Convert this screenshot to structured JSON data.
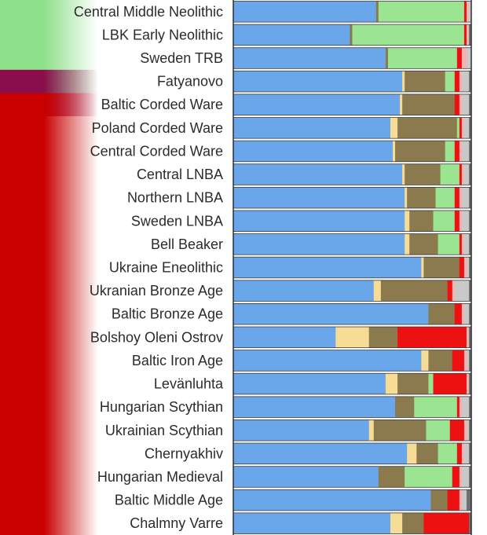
{
  "chart_data": {
    "type": "bar",
    "orientation": "horizontal",
    "stacked": true,
    "normalized": true,
    "title": "",
    "xlabel": "",
    "ylabel": "",
    "xlim": [
      0,
      1
    ],
    "grid": false,
    "legend": "none",
    "component_colors": [
      "#6aa6ea",
      "#f7dc96",
      "#8b7a4d",
      "#9be592",
      "#ee1111",
      "#f7b1b1",
      "#c9c9c9",
      "#707070"
    ],
    "groups": [
      {
        "name": "",
        "color": "#8ee08a",
        "start": 0,
        "end": 3
      },
      {
        "name": "",
        "color": "#8a0e4c",
        "start": 3,
        "end": 4
      },
      {
        "name": "",
        "color": "#c80000",
        "start": 4,
        "end": 22
      }
    ],
    "categories": [
      "Central Middle Neolithic",
      "LBK Early Neolithic",
      "Sweden TRB",
      "Fatyanovo",
      "Baltic Corded Ware",
      "Poland Corded Ware",
      "Central Corded Ware",
      "Central LNBA",
      "Northern LNBA",
      "Sweden LNBA",
      "Bell Beaker",
      "Ukraine Eneolithic",
      "Ukranian Bronze Age",
      "Baltic Bronze Age",
      "Bolshoy Oleni Ostrov",
      "Baltic Iron Age",
      "Levänluhta",
      "Hungarian Scythian",
      "Ukrainian Scythian",
      "Chernyakhiv",
      "Hungarian Medieval",
      "Baltic Middle Age",
      "Chalmny Varre"
    ],
    "values": [
      [
        0.6,
        0.0,
        0.01,
        0.36,
        0.01,
        0.01,
        0.01,
        0.0
      ],
      [
        0.49,
        0.0,
        0.01,
        0.47,
        0.01,
        0.01,
        0.0,
        0.01
      ],
      [
        0.64,
        0.0,
        0.01,
        0.29,
        0.02,
        0.02,
        0.02,
        0.0
      ],
      [
        0.71,
        0.01,
        0.17,
        0.04,
        0.02,
        0.01,
        0.03,
        0.01
      ],
      [
        0.7,
        0.01,
        0.22,
        0.0,
        0.02,
        0.01,
        0.03,
        0.01
      ],
      [
        0.66,
        0.03,
        0.25,
        0.01,
        0.01,
        0.01,
        0.02,
        0.01
      ],
      [
        0.67,
        0.01,
        0.21,
        0.04,
        0.02,
        0.01,
        0.03,
        0.01
      ],
      [
        0.71,
        0.01,
        0.15,
        0.08,
        0.01,
        0.01,
        0.02,
        0.01
      ],
      [
        0.72,
        0.01,
        0.12,
        0.08,
        0.02,
        0.01,
        0.03,
        0.01
      ],
      [
        0.72,
        0.02,
        0.1,
        0.09,
        0.02,
        0.01,
        0.03,
        0.01
      ],
      [
        0.72,
        0.02,
        0.12,
        0.09,
        0.01,
        0.01,
        0.02,
        0.01
      ],
      [
        0.79,
        0.01,
        0.15,
        0.0,
        0.02,
        0.01,
        0.01,
        0.01
      ],
      [
        0.59,
        0.03,
        0.28,
        0.0,
        0.02,
        0.01,
        0.06,
        0.01
      ],
      [
        0.82,
        0.0,
        0.11,
        0.0,
        0.03,
        0.01,
        0.02,
        0.01
      ],
      [
        0.43,
        0.14,
        0.12,
        0.0,
        0.29,
        0.01,
        0.0,
        0.01
      ],
      [
        0.79,
        0.03,
        0.1,
        0.0,
        0.05,
        0.01,
        0.01,
        0.01
      ],
      [
        0.64,
        0.05,
        0.13,
        0.02,
        0.14,
        0.01,
        0.0,
        0.01
      ],
      [
        0.68,
        0.0,
        0.08,
        0.18,
        0.01,
        0.01,
        0.03,
        0.01
      ],
      [
        0.57,
        0.02,
        0.22,
        0.1,
        0.06,
        0.01,
        0.01,
        0.01
      ],
      [
        0.73,
        0.04,
        0.09,
        0.08,
        0.02,
        0.01,
        0.02,
        0.01
      ],
      [
        0.61,
        0.0,
        0.11,
        0.2,
        0.03,
        0.01,
        0.03,
        0.01
      ],
      [
        0.83,
        0.0,
        0.07,
        0.0,
        0.05,
        0.01,
        0.02,
        0.02
      ],
      [
        0.66,
        0.05,
        0.09,
        0.0,
        0.19,
        0.0,
        0.0,
        0.01
      ]
    ]
  }
}
